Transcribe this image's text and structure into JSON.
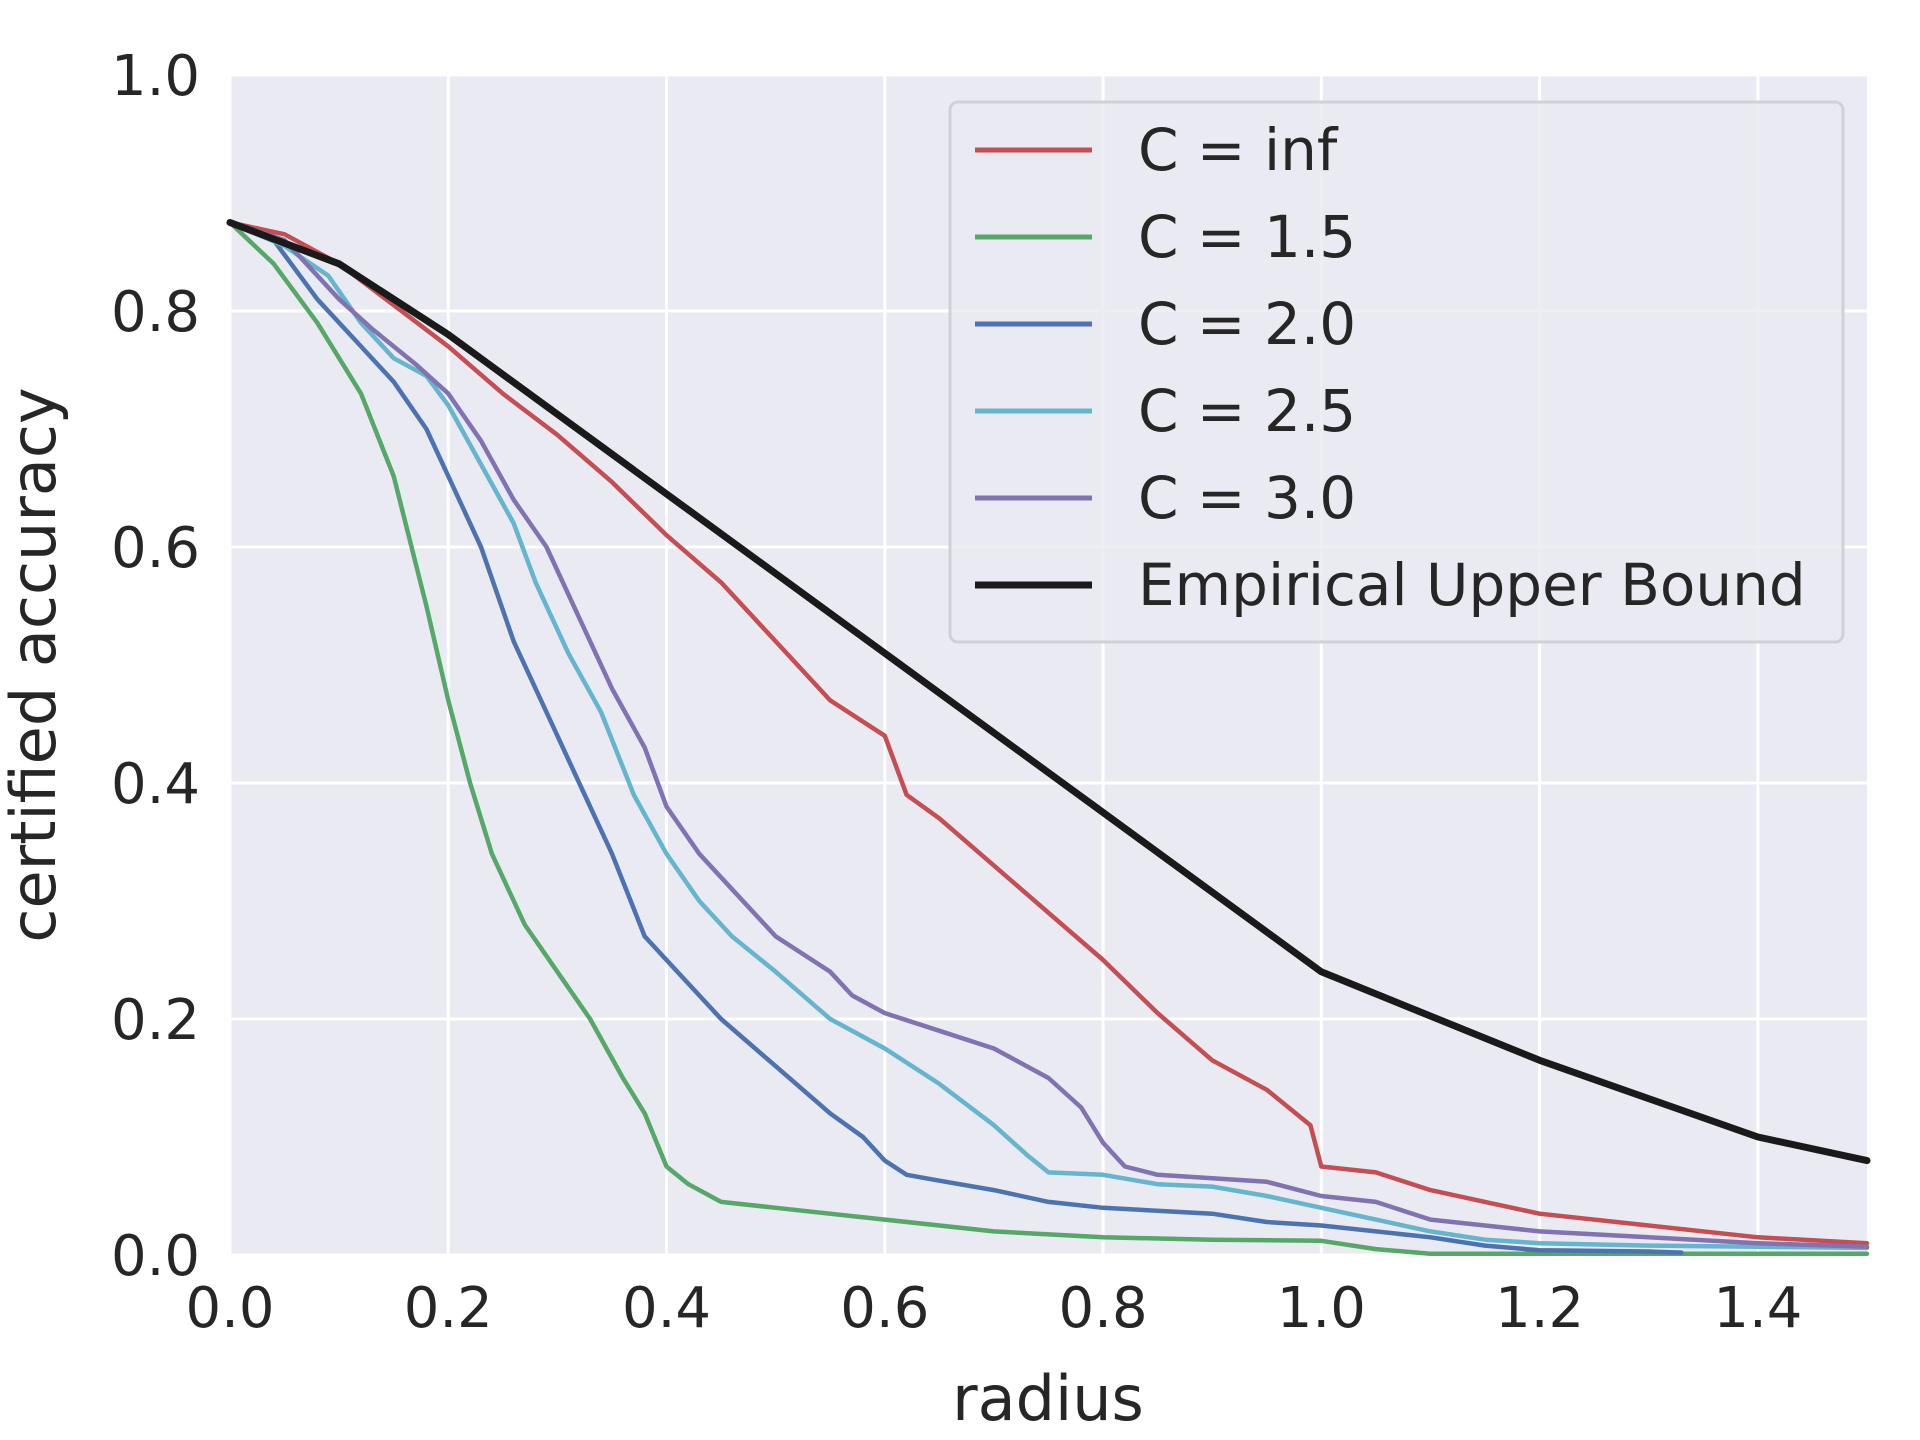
{
  "chart_data": {
    "type": "line",
    "title": "",
    "xlabel": "radius",
    "ylabel": "certified accuracy",
    "xlim": [
      0.0,
      1.5
    ],
    "ylim": [
      0.0,
      1.0
    ],
    "xticks": [
      0.0,
      0.2,
      0.4,
      0.6,
      0.8,
      1.0,
      1.2,
      1.4
    ],
    "xtick_labels": [
      "0.0",
      "0.2",
      "0.4",
      "0.6",
      "0.8",
      "1.0",
      "1.2",
      "1.4"
    ],
    "yticks": [
      0.0,
      0.2,
      0.4,
      0.6,
      0.8,
      1.0
    ],
    "ytick_labels": [
      "0.0",
      "0.2",
      "0.4",
      "0.6",
      "0.8",
      "1.0"
    ],
    "grid": true,
    "legend_position": "top-right",
    "series": [
      {
        "name": "C = inf",
        "color": "#c44e52",
        "points": [
          [
            0.0,
            0.875
          ],
          [
            0.05,
            0.865
          ],
          [
            0.1,
            0.84
          ],
          [
            0.15,
            0.805
          ],
          [
            0.2,
            0.77
          ],
          [
            0.25,
            0.73
          ],
          [
            0.3,
            0.695
          ],
          [
            0.35,
            0.655
          ],
          [
            0.4,
            0.61
          ],
          [
            0.45,
            0.57
          ],
          [
            0.5,
            0.52
          ],
          [
            0.55,
            0.47
          ],
          [
            0.6,
            0.44
          ],
          [
            0.62,
            0.39
          ],
          [
            0.65,
            0.37
          ],
          [
            0.7,
            0.33
          ],
          [
            0.75,
            0.29
          ],
          [
            0.8,
            0.25
          ],
          [
            0.85,
            0.205
          ],
          [
            0.9,
            0.165
          ],
          [
            0.95,
            0.14
          ],
          [
            0.99,
            0.11
          ],
          [
            1.0,
            0.075
          ],
          [
            1.05,
            0.07
          ],
          [
            1.1,
            0.055
          ],
          [
            1.15,
            0.045
          ],
          [
            1.2,
            0.035
          ],
          [
            1.3,
            0.025
          ],
          [
            1.4,
            0.015
          ],
          [
            1.5,
            0.01
          ]
        ]
      },
      {
        "name": "C = 1.5",
        "color": "#55a868",
        "points": [
          [
            0.0,
            0.875
          ],
          [
            0.04,
            0.84
          ],
          [
            0.08,
            0.79
          ],
          [
            0.12,
            0.73
          ],
          [
            0.15,
            0.66
          ],
          [
            0.18,
            0.55
          ],
          [
            0.2,
            0.47
          ],
          [
            0.22,
            0.4
          ],
          [
            0.24,
            0.34
          ],
          [
            0.27,
            0.28
          ],
          [
            0.3,
            0.24
          ],
          [
            0.33,
            0.2
          ],
          [
            0.36,
            0.15
          ],
          [
            0.38,
            0.12
          ],
          [
            0.4,
            0.075
          ],
          [
            0.42,
            0.06
          ],
          [
            0.45,
            0.045
          ],
          [
            0.5,
            0.04
          ],
          [
            0.6,
            0.03
          ],
          [
            0.7,
            0.02
          ],
          [
            0.8,
            0.015
          ],
          [
            0.9,
            0.013
          ],
          [
            1.0,
            0.012
          ],
          [
            1.05,
            0.005
          ],
          [
            1.1,
            0.001
          ],
          [
            1.5,
            0.001
          ]
        ]
      },
      {
        "name": "C = 2.0",
        "color": "#4c72b0",
        "points": [
          [
            0.0,
            0.875
          ],
          [
            0.04,
            0.86
          ],
          [
            0.08,
            0.81
          ],
          [
            0.12,
            0.77
          ],
          [
            0.15,
            0.74
          ],
          [
            0.18,
            0.7
          ],
          [
            0.2,
            0.66
          ],
          [
            0.23,
            0.6
          ],
          [
            0.26,
            0.52
          ],
          [
            0.29,
            0.46
          ],
          [
            0.32,
            0.4
          ],
          [
            0.35,
            0.34
          ],
          [
            0.38,
            0.27
          ],
          [
            0.4,
            0.25
          ],
          [
            0.45,
            0.2
          ],
          [
            0.5,
            0.16
          ],
          [
            0.55,
            0.12
          ],
          [
            0.58,
            0.1
          ],
          [
            0.6,
            0.08
          ],
          [
            0.62,
            0.068
          ],
          [
            0.65,
            0.063
          ],
          [
            0.7,
            0.055
          ],
          [
            0.75,
            0.045
          ],
          [
            0.8,
            0.04
          ],
          [
            0.9,
            0.035
          ],
          [
            0.95,
            0.028
          ],
          [
            1.0,
            0.025
          ],
          [
            1.1,
            0.015
          ],
          [
            1.15,
            0.008
          ],
          [
            1.2,
            0.004
          ],
          [
            1.3,
            0.003
          ],
          [
            1.33,
            0.002
          ]
        ]
      },
      {
        "name": "C = 2.5",
        "color": "#64b5cd",
        "points": [
          [
            0.0,
            0.875
          ],
          [
            0.05,
            0.855
          ],
          [
            0.09,
            0.83
          ],
          [
            0.12,
            0.79
          ],
          [
            0.15,
            0.76
          ],
          [
            0.18,
            0.745
          ],
          [
            0.2,
            0.72
          ],
          [
            0.23,
            0.67
          ],
          [
            0.26,
            0.62
          ],
          [
            0.28,
            0.57
          ],
          [
            0.31,
            0.51
          ],
          [
            0.34,
            0.46
          ],
          [
            0.37,
            0.39
          ],
          [
            0.4,
            0.34
          ],
          [
            0.43,
            0.3
          ],
          [
            0.46,
            0.27
          ],
          [
            0.5,
            0.24
          ],
          [
            0.55,
            0.2
          ],
          [
            0.6,
            0.175
          ],
          [
            0.65,
            0.145
          ],
          [
            0.7,
            0.11
          ],
          [
            0.73,
            0.085
          ],
          [
            0.75,
            0.07
          ],
          [
            0.8,
            0.068
          ],
          [
            0.85,
            0.06
          ],
          [
            0.9,
            0.058
          ],
          [
            0.95,
            0.05
          ],
          [
            1.0,
            0.04
          ],
          [
            1.05,
            0.03
          ],
          [
            1.1,
            0.02
          ],
          [
            1.15,
            0.013
          ],
          [
            1.2,
            0.01
          ],
          [
            1.3,
            0.008
          ],
          [
            1.5,
            0.006
          ]
        ]
      },
      {
        "name": "C = 3.0",
        "color": "#8172b2",
        "points": [
          [
            0.0,
            0.875
          ],
          [
            0.05,
            0.86
          ],
          [
            0.1,
            0.81
          ],
          [
            0.13,
            0.785
          ],
          [
            0.17,
            0.755
          ],
          [
            0.2,
            0.73
          ],
          [
            0.23,
            0.69
          ],
          [
            0.26,
            0.64
          ],
          [
            0.29,
            0.6
          ],
          [
            0.32,
            0.54
          ],
          [
            0.35,
            0.48
          ],
          [
            0.38,
            0.43
          ],
          [
            0.4,
            0.38
          ],
          [
            0.43,
            0.34
          ],
          [
            0.46,
            0.31
          ],
          [
            0.5,
            0.27
          ],
          [
            0.55,
            0.24
          ],
          [
            0.57,
            0.22
          ],
          [
            0.6,
            0.205
          ],
          [
            0.65,
            0.19
          ],
          [
            0.7,
            0.175
          ],
          [
            0.75,
            0.15
          ],
          [
            0.78,
            0.125
          ],
          [
            0.8,
            0.095
          ],
          [
            0.82,
            0.075
          ],
          [
            0.85,
            0.068
          ],
          [
            0.9,
            0.065
          ],
          [
            0.95,
            0.062
          ],
          [
            1.0,
            0.05
          ],
          [
            1.05,
            0.045
          ],
          [
            1.1,
            0.03
          ],
          [
            1.15,
            0.025
          ],
          [
            1.2,
            0.02
          ],
          [
            1.3,
            0.015
          ],
          [
            1.4,
            0.01
          ],
          [
            1.5,
            0.007
          ]
        ]
      },
      {
        "name": "Empirical Upper Bound",
        "color": "#1a1a1a",
        "points": [
          [
            0.0,
            0.875
          ],
          [
            0.1,
            0.84
          ],
          [
            0.2,
            0.78
          ],
          [
            0.4,
            0.645
          ],
          [
            0.6,
            0.51
          ],
          [
            0.8,
            0.375
          ],
          [
            1.0,
            0.24
          ],
          [
            1.2,
            0.165
          ],
          [
            1.4,
            0.1
          ],
          [
            1.5,
            0.08
          ]
        ]
      }
    ]
  }
}
